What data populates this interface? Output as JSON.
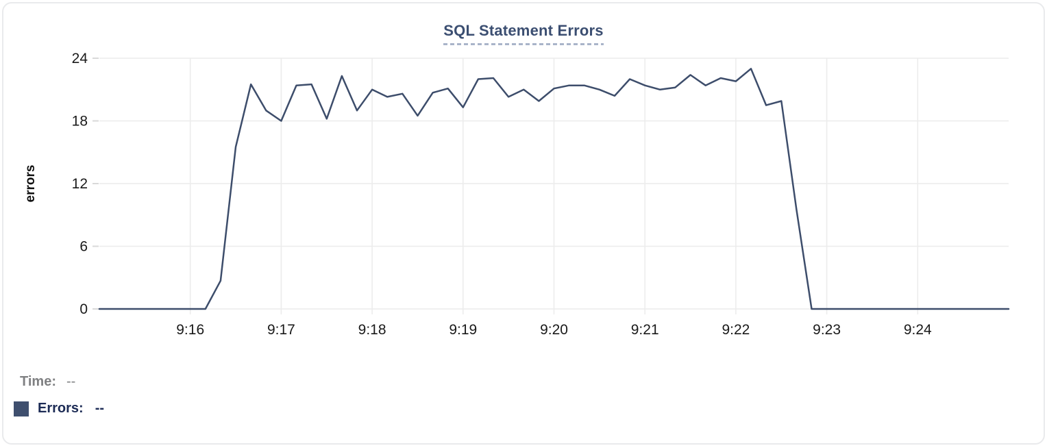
{
  "title": {
    "text": "SQL Statement Errors",
    "color": "#3b4e71",
    "underline_color": "#a9b4c9"
  },
  "chart_data": {
    "type": "line",
    "title": "SQL Statement Errors",
    "xlabel": "",
    "ylabel": "errors",
    "series_name": "Errors",
    "interval_seconds": 10,
    "xlim": [
      "9:15:00",
      "9:25:00"
    ],
    "ylim": [
      0,
      24
    ],
    "yticks": [
      0,
      6,
      12,
      18,
      24
    ],
    "xticks": [
      "9:16",
      "9:17",
      "9:18",
      "9:19",
      "9:20",
      "9:21",
      "9:22",
      "9:23",
      "9:24"
    ],
    "grid": true,
    "legend_position": "bottom-left",
    "line_color": "#3d4d6b",
    "grid_color": "#ececec",
    "tick_color": "#d9d9d9",
    "tick_label_color": "#1a1a1a",
    "x": [
      "9:15:00",
      "9:15:10",
      "9:15:20",
      "9:15:30",
      "9:15:40",
      "9:15:50",
      "9:16:00",
      "9:16:10",
      "9:16:20",
      "9:16:30",
      "9:16:40",
      "9:16:50",
      "9:17:00",
      "9:17:10",
      "9:17:20",
      "9:17:30",
      "9:17:40",
      "9:17:50",
      "9:18:00",
      "9:18:10",
      "9:18:20",
      "9:18:30",
      "9:18:40",
      "9:18:50",
      "9:19:00",
      "9:19:10",
      "9:19:20",
      "9:19:30",
      "9:19:40",
      "9:19:50",
      "9:20:00",
      "9:20:10",
      "9:20:20",
      "9:20:30",
      "9:20:40",
      "9:20:50",
      "9:21:00",
      "9:21:10",
      "9:21:20",
      "9:21:30",
      "9:21:40",
      "9:21:50",
      "9:22:00",
      "9:22:10",
      "9:22:20",
      "9:22:30",
      "9:22:40",
      "9:22:50",
      "9:23:00",
      "9:23:10",
      "9:23:20",
      "9:23:30",
      "9:23:40",
      "9:23:50",
      "9:24:00",
      "9:24:10",
      "9:24:20",
      "9:24:30",
      "9:24:40",
      "9:24:50",
      "9:25:00"
    ],
    "values": [
      0,
      0,
      0,
      0,
      0,
      0,
      0,
      0,
      2.7,
      15.5,
      21.5,
      19,
      18,
      21.4,
      21.5,
      18.2,
      22.3,
      19,
      21,
      20.3,
      20.6,
      18.5,
      20.7,
      21.1,
      19.3,
      22,
      22.1,
      20.3,
      21,
      19.9,
      21.1,
      21.4,
      21.4,
      21,
      20.4,
      22,
      21.4,
      21,
      21.2,
      22.4,
      21.4,
      22.1,
      21.8,
      23,
      19.5,
      19.9,
      9.5,
      0,
      0,
      0,
      0,
      0,
      0,
      0,
      0,
      0,
      0,
      0,
      0,
      0,
      0
    ]
  },
  "tooltip_legend": {
    "time_label": "Time:",
    "time_value": "--",
    "errors_label": "Errors:",
    "errors_value": "--",
    "swatch_color": "#3f4f6e",
    "time_color": "#7f8082",
    "errors_color": "#1c2b55"
  }
}
